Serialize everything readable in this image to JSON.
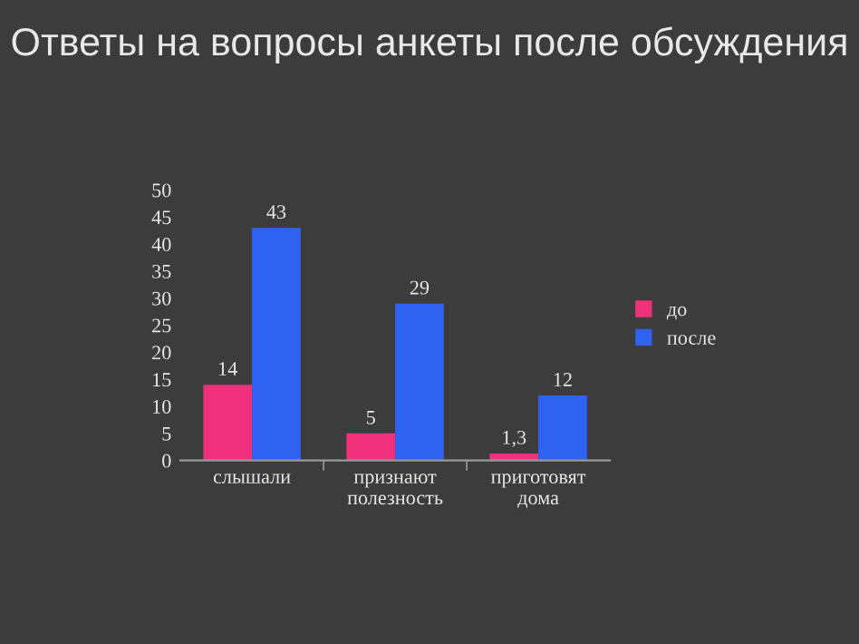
{
  "chart_data": {
    "type": "bar",
    "title": "Ответы на вопросы анкеты после обсуждения",
    "categories": [
      "слышали",
      "признают\nполезность",
      "приготовят\nдома"
    ],
    "series": [
      {
        "name": "до",
        "color": "#f0307a",
        "values": [
          14,
          5,
          1.3
        ],
        "value_labels": [
          "14",
          "5",
          "1,3"
        ]
      },
      {
        "name": "после",
        "color": "#2f62f0",
        "values": [
          43,
          29,
          12
        ],
        "value_labels": [
          "43",
          "29",
          "12"
        ]
      }
    ],
    "ylim": [
      0,
      50
    ],
    "yticks": [
      0,
      5,
      10,
      15,
      20,
      25,
      30,
      35,
      40,
      45,
      50
    ],
    "grid": false,
    "legend": "right"
  }
}
